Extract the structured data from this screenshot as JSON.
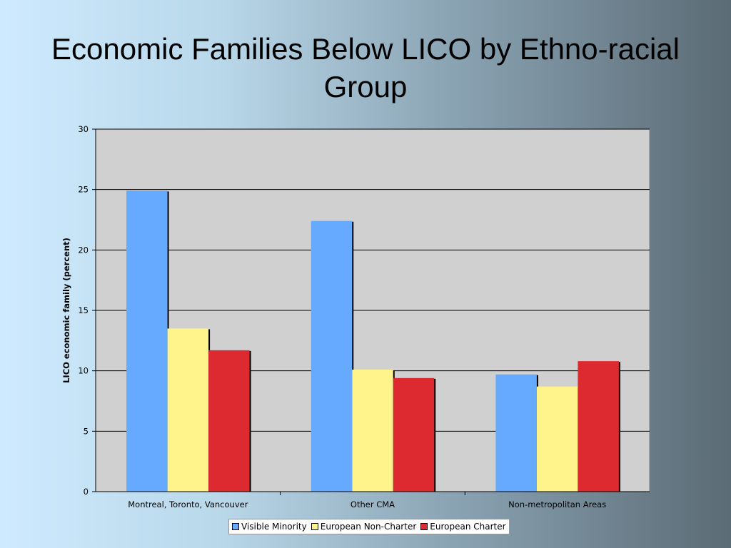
{
  "slide": {
    "title": "Economic Families Below LICO by Ethno-racial Group"
  },
  "chart_data": {
    "type": "bar",
    "title": "",
    "xlabel": "",
    "ylabel": "LICO economic family (percent)",
    "ylim": [
      0,
      30
    ],
    "yticks": [
      0,
      5,
      10,
      15,
      20,
      25,
      30
    ],
    "grid": true,
    "legend_position": "bottom",
    "categories": [
      "Montreal, Toronto, Vancouver",
      "Other CMA",
      "Non-metropolitan Areas"
    ],
    "series": [
      {
        "name": "Visible Minority",
        "color": "#66aaff",
        "values": [
          24.9,
          22.4,
          9.7
        ]
      },
      {
        "name": "European Non-Charter",
        "color": "#fff48c",
        "values": [
          13.5,
          10.1,
          8.7
        ]
      },
      {
        "name": "European Charter",
        "color": "#dd2a30",
        "values": [
          11.7,
          9.4,
          10.8
        ]
      }
    ],
    "plot_background": "#d0d0d0"
  }
}
